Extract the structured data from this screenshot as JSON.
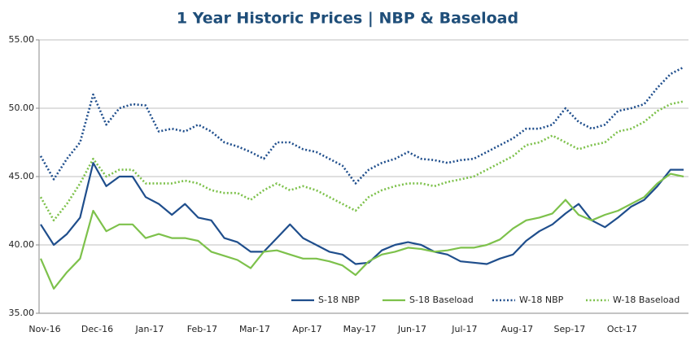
{
  "chart_data": {
    "type": "line",
    "title": "1 Year Historic Prices | NBP & Baseload",
    "categories": [
      "Nov-16",
      null,
      null,
      null,
      "Dec-16",
      null,
      null,
      null,
      "Jan-17",
      null,
      null,
      null,
      "Feb-17",
      null,
      null,
      null,
      "Mar-17",
      null,
      null,
      null,
      "Apr-17",
      null,
      null,
      null,
      "May-17",
      null,
      null,
      null,
      "Jun-17",
      null,
      null,
      null,
      "Jul-17",
      null,
      null,
      null,
      "Aug-17",
      null,
      null,
      null,
      "Sep-17",
      null,
      null,
      null,
      "Oct-17",
      null,
      null,
      null,
      null,
      null
    ],
    "series": [
      {
        "name": "S-18 NBP",
        "color": "#1f4e8c",
        "style": "solid",
        "values": [
          41.5,
          40.0,
          40.8,
          42.0,
          46.0,
          44.3,
          45.0,
          45.0,
          43.5,
          43.0,
          42.2,
          43.0,
          42.0,
          41.8,
          40.5,
          40.2,
          39.5,
          39.5,
          40.5,
          41.5,
          40.5,
          40.0,
          39.5,
          39.3,
          38.6,
          38.7,
          39.6,
          40.0,
          40.2,
          40.0,
          39.5,
          39.3,
          38.8,
          38.7,
          38.6,
          39.0,
          39.3,
          40.3,
          41.0,
          41.5,
          42.3,
          43.0,
          41.8,
          41.3,
          42.0,
          42.8,
          43.3,
          44.3,
          45.5,
          45.5
        ]
      },
      {
        "name": "S-18 Baseload",
        "color": "#7dc14b",
        "style": "solid",
        "values": [
          39.0,
          36.8,
          38.0,
          39.0,
          42.5,
          41.0,
          41.5,
          41.5,
          40.5,
          40.8,
          40.5,
          40.5,
          40.3,
          39.5,
          39.2,
          38.9,
          38.3,
          39.5,
          39.6,
          39.3,
          39.0,
          39.0,
          38.8,
          38.5,
          37.8,
          38.8,
          39.3,
          39.5,
          39.8,
          39.7,
          39.5,
          39.6,
          39.8,
          39.8,
          40.0,
          40.4,
          41.2,
          41.8,
          42.0,
          42.3,
          43.3,
          42.2,
          41.8,
          42.2,
          42.5,
          43.0,
          43.5,
          44.5,
          45.2,
          45.0
        ]
      },
      {
        "name": "W-18 NBP",
        "color": "#1f4e8c",
        "style": "dotted",
        "values": [
          46.5,
          44.8,
          46.3,
          47.5,
          51.0,
          48.8,
          50.0,
          50.3,
          50.2,
          48.3,
          48.5,
          48.3,
          48.8,
          48.3,
          47.5,
          47.2,
          46.8,
          46.3,
          47.5,
          47.5,
          47.0,
          46.8,
          46.3,
          45.8,
          44.5,
          45.5,
          46.0,
          46.3,
          46.8,
          46.3,
          46.2,
          46.0,
          46.2,
          46.3,
          46.8,
          47.3,
          47.8,
          48.5,
          48.5,
          48.8,
          50.0,
          49.0,
          48.5,
          48.8,
          49.8,
          50.0,
          50.3,
          51.5,
          52.5,
          53.0
        ]
      },
      {
        "name": "W-18 Baseload",
        "color": "#7dc14b",
        "style": "dotted",
        "values": [
          43.5,
          41.8,
          43.0,
          44.5,
          46.3,
          45.0,
          45.5,
          45.5,
          44.5,
          44.5,
          44.5,
          44.7,
          44.5,
          44.0,
          43.8,
          43.8,
          43.3,
          44.0,
          44.5,
          44.0,
          44.3,
          44.0,
          43.5,
          43.0,
          42.5,
          43.5,
          44.0,
          44.3,
          44.5,
          44.5,
          44.3,
          44.6,
          44.8,
          45.0,
          45.5,
          46.0,
          46.5,
          47.3,
          47.5,
          48.0,
          47.5,
          47.0,
          47.3,
          47.5,
          48.3,
          48.5,
          49.0,
          49.8,
          50.3,
          50.5
        ]
      }
    ],
    "ylim": [
      35,
      55
    ],
    "yticks": [
      {
        "value": 35,
        "label": "35.00"
      },
      {
        "value": 40,
        "label": "40.00"
      },
      {
        "value": 45,
        "label": "45.00"
      },
      {
        "value": 50,
        "label": "50.00"
      },
      {
        "value": 55,
        "label": "55.00"
      }
    ],
    "grid": true,
    "legend": "lower right"
  }
}
